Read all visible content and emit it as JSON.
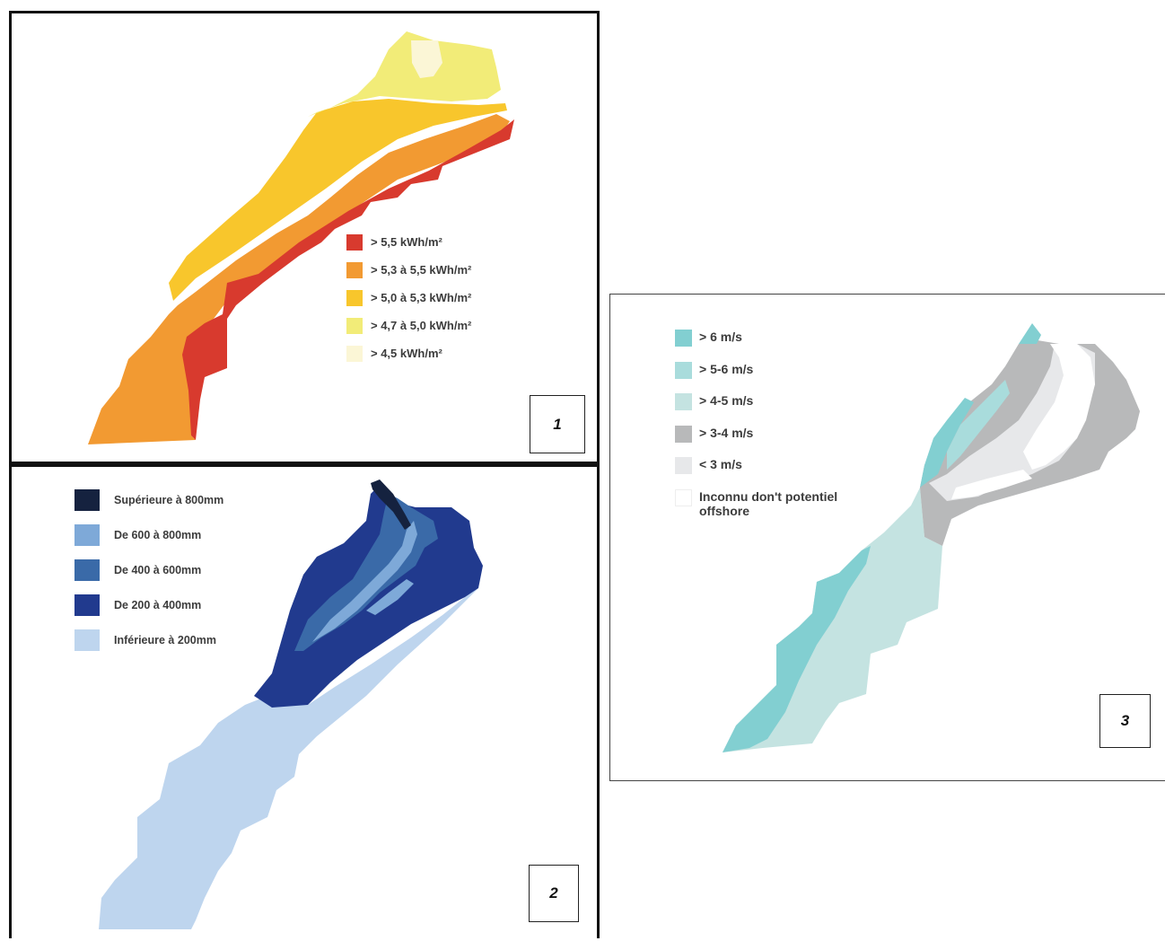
{
  "maps": [
    {
      "number": "1",
      "legend": [
        {
          "label": "> 5,5 kWh/m²",
          "color": "#d83a2e"
        },
        {
          "label": "> 5,3 à 5,5 kWh/m²",
          "color": "#f29a32"
        },
        {
          "label": "> 5,0 à 5,3 kWh/m²",
          "color": "#f8c62c"
        },
        {
          "label": "> 4,7 à 5,0 kWh/m²",
          "color": "#f2ec78"
        },
        {
          "label": "> 4,5 kWh/m²",
          "color": "#fbf6d6"
        }
      ]
    },
    {
      "number": "2",
      "legend": [
        {
          "label": "Supérieure à 800mm",
          "color": "#15223f"
        },
        {
          "label": "De 600 à 800mm",
          "color": "#7ea9d8"
        },
        {
          "label": "De 400 à 600mm",
          "color": "#3a6aa8"
        },
        {
          "label": "De 200 à 400mm",
          "color": "#213a8e"
        },
        {
          "label": "Inférieure à 200mm",
          "color": "#bed5ee"
        }
      ]
    },
    {
      "number": "3",
      "legend": [
        {
          "label": "> 6 m/s",
          "color": "#82cfd1"
        },
        {
          "label": "> 5-6 m/s",
          "color": "#a9dcdc"
        },
        {
          "label": "> 4-5 m/s",
          "color": "#c4e3e1"
        },
        {
          "label": "> 3-4 m/s",
          "color": "#b8b9ba"
        },
        {
          "label": "< 3 m/s",
          "color": "#e7e8ea"
        },
        {
          "label": "Inconnu don't potentiel offshore",
          "color": "#ffffff"
        }
      ]
    }
  ]
}
